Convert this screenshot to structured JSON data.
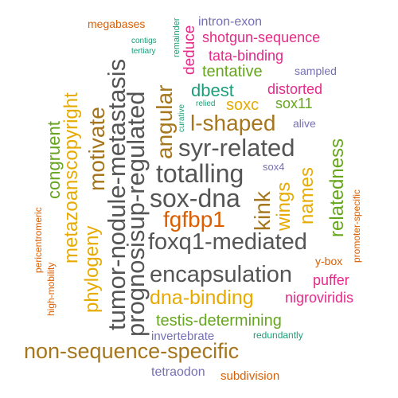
{
  "words": [
    {
      "text": "megabases",
      "color": "#d95f02"
    },
    {
      "text": "contigs",
      "color": "#1b9e77"
    },
    {
      "text": "tertiary",
      "color": "#1b9e77"
    },
    {
      "text": "remainder",
      "color": "#1b9e77"
    },
    {
      "text": "intron-exon",
      "color": "#7570b3"
    },
    {
      "text": "deduce",
      "color": "#e7298a"
    },
    {
      "text": "shotgun-sequence",
      "color": "#e7298a"
    },
    {
      "text": "tata-binding",
      "color": "#e7298a"
    },
    {
      "text": "sampled",
      "color": "#7570b3"
    },
    {
      "text": "tentative",
      "color": "#66a61e"
    },
    {
      "text": "dbest",
      "color": "#1b9e77"
    },
    {
      "text": "distorted",
      "color": "#e7298a"
    },
    {
      "text": "curative",
      "color": "#1b9e77"
    },
    {
      "text": "relied",
      "color": "#1b9e77"
    },
    {
      "text": "soxc",
      "color": "#e6ab02"
    },
    {
      "text": "sox11",
      "color": "#66a61e"
    },
    {
      "text": "alive",
      "color": "#7570b3"
    },
    {
      "text": "l-shaped",
      "color": "#a6761d"
    },
    {
      "text": "syr-related",
      "color": "#555555"
    },
    {
      "text": "totalling",
      "color": "#555555"
    },
    {
      "text": "sox4",
      "color": "#7570b3"
    },
    {
      "text": "sox-dna",
      "color": "#555555"
    },
    {
      "text": "fgfbp1",
      "color": "#d95f02"
    },
    {
      "text": "foxq1-mediated",
      "color": "#555555"
    },
    {
      "text": "encapsulation",
      "color": "#555555"
    },
    {
      "text": "dna-binding",
      "color": "#e6ab02"
    },
    {
      "text": "testis-determining",
      "color": "#66a61e"
    },
    {
      "text": "invertebrate",
      "color": "#7570b3"
    },
    {
      "text": "redundantly",
      "color": "#1b9e77"
    },
    {
      "text": "non-sequence-specific",
      "color": "#a6761d"
    },
    {
      "text": "tetraodon",
      "color": "#7570b3"
    },
    {
      "text": "subdivision",
      "color": "#d95f02"
    },
    {
      "text": "y-box",
      "color": "#d95f02"
    },
    {
      "text": "puffer",
      "color": "#e7298a"
    },
    {
      "text": "nigroviridis",
      "color": "#e7298a"
    },
    {
      "text": "pericentromeric",
      "color": "#d95f02"
    },
    {
      "text": "high-mobility",
      "color": "#d95f02"
    },
    {
      "text": "promoter-specific",
      "color": "#d95f02"
    },
    {
      "text": "congruent",
      "color": "#66a61e"
    },
    {
      "text": "metazoanscopyright",
      "color": "#e6ab02"
    },
    {
      "text": "phylogeny",
      "color": "#e6ab02"
    },
    {
      "text": "motivate",
      "color": "#a6761d"
    },
    {
      "text": "tumor-nodule-metastasis",
      "color": "#555555"
    },
    {
      "text": "prognosisup-regulated",
      "color": "#555555"
    },
    {
      "text": "angular",
      "color": "#a6761d"
    },
    {
      "text": "kink",
      "color": "#a6761d"
    },
    {
      "text": "wings",
      "color": "#e6ab02"
    },
    {
      "text": "names",
      "color": "#e6ab02"
    },
    {
      "text": "relatedness",
      "color": "#66a61e"
    }
  ]
}
